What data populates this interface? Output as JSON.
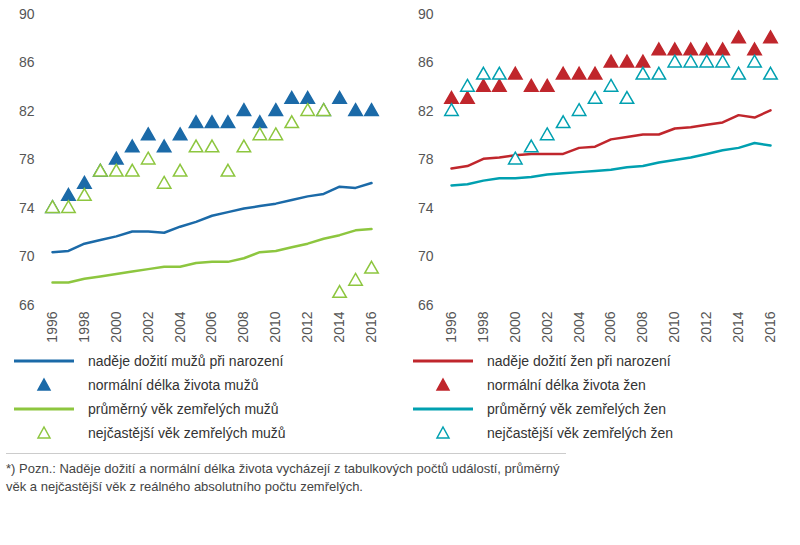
{
  "chart_data": [
    {
      "type": "line",
      "x": [
        1996,
        1997,
        1998,
        1999,
        2000,
        2001,
        2002,
        2003,
        2004,
        2005,
        2006,
        2007,
        2008,
        2009,
        2010,
        2011,
        2012,
        2013,
        2014,
        2015,
        2016
      ],
      "xlim": [
        1996,
        2016
      ],
      "xticks": [
        1996,
        1998,
        2000,
        2002,
        2004,
        2006,
        2008,
        2010,
        2012,
        2014,
        2016
      ],
      "ylim": [
        66,
        90
      ],
      "yticks": [
        66,
        70,
        74,
        78,
        82,
        86,
        90
      ],
      "grid": false,
      "legend": "bottom",
      "series": [
        {
          "name": "naděje dožití mužů při narození",
          "type": "line",
          "color": "#1b6aa8",
          "line_style": "solid",
          "values": [
            70.4,
            70.5,
            71.1,
            71.4,
            71.7,
            72.1,
            72.1,
            72.0,
            72.5,
            72.9,
            73.4,
            73.7,
            74.0,
            74.2,
            74.4,
            74.7,
            75.0,
            75.2,
            75.8,
            75.7,
            76.1
          ]
        },
        {
          "name": "normální délka života mužů",
          "type": "scatter",
          "color": "#1b6aa8",
          "marker": "filled_triangle",
          "values": [
            74,
            75,
            76,
            77,
            78,
            79,
            80,
            79,
            80,
            81,
            81,
            81,
            82,
            81,
            82,
            83,
            83,
            82,
            83,
            82,
            82
          ]
        },
        {
          "name": "průměrný věk zemřelých mužů",
          "type": "line",
          "color": "#8dc63f",
          "line_style": "solid",
          "values": [
            67.9,
            67.9,
            68.2,
            68.4,
            68.6,
            68.8,
            69.0,
            69.2,
            69.2,
            69.5,
            69.6,
            69.6,
            69.9,
            70.4,
            70.5,
            70.8,
            71.1,
            71.5,
            71.8,
            72.2,
            72.3
          ]
        },
        {
          "name": "nejčastější věk zemřelých mužů",
          "type": "scatter",
          "color": "#8dc63f",
          "marker": "open_triangle",
          "values": [
            74,
            74,
            75,
            77,
            77,
            77,
            78,
            76,
            77,
            79,
            79,
            77,
            79,
            80,
            80,
            81,
            82,
            82,
            67,
            68,
            69
          ]
        }
      ]
    },
    {
      "type": "line",
      "x": [
        1996,
        1997,
        1998,
        1999,
        2000,
        2001,
        2002,
        2003,
        2004,
        2005,
        2006,
        2007,
        2008,
        2009,
        2010,
        2011,
        2012,
        2013,
        2014,
        2015,
        2016
      ],
      "xlim": [
        1996,
        2016
      ],
      "xticks": [
        1996,
        1998,
        2000,
        2002,
        2004,
        2006,
        2008,
        2010,
        2012,
        2014,
        2016
      ],
      "ylim": [
        66,
        90
      ],
      "yticks": [
        66,
        70,
        74,
        78,
        82,
        86,
        90
      ],
      "grid": false,
      "legend": "bottom",
      "series": [
        {
          "name": "naděje dožití žen při narození",
          "type": "line",
          "color": "#c0262c",
          "line_style": "solid",
          "values": [
            77.3,
            77.5,
            78.1,
            78.2,
            78.4,
            78.5,
            78.5,
            78.5,
            79.0,
            79.1,
            79.7,
            79.9,
            80.1,
            80.1,
            80.6,
            80.7,
            80.9,
            81.1,
            81.7,
            81.5,
            82.1
          ]
        },
        {
          "name": "normální délka života žen",
          "type": "scatter",
          "color": "#c0262c",
          "marker": "filled_triangle",
          "values": [
            83,
            83,
            84,
            84,
            85,
            84,
            84,
            85,
            85,
            85,
            86,
            86,
            86,
            87,
            87,
            87,
            87,
            87,
            88,
            87,
            88
          ]
        },
        {
          "name": "průměrný věk zemřelých žen",
          "type": "line",
          "color": "#00a0b0",
          "line_style": "solid",
          "values": [
            75.9,
            76.0,
            76.3,
            76.5,
            76.5,
            76.6,
            76.8,
            76.9,
            77.0,
            77.1,
            77.2,
            77.4,
            77.5,
            77.8,
            78.0,
            78.2,
            78.5,
            78.8,
            79.0,
            79.4,
            79.2
          ]
        },
        {
          "name": "nejčastější věk zemřelých žen",
          "type": "scatter",
          "color": "#00a0b0",
          "marker": "open_triangle",
          "values": [
            82,
            84,
            85,
            85,
            78,
            79,
            80,
            81,
            82,
            83,
            84,
            83,
            85,
            85,
            86,
            86,
            86,
            86,
            85,
            86,
            85
          ]
        }
      ]
    }
  ],
  "note": "*) Pozn.: Naděje dožití a normální délka života vycházejí z tabulkových počtů událostí, průměrný věk a nejčastější věk z reálného absolutního počtu zemřelých."
}
